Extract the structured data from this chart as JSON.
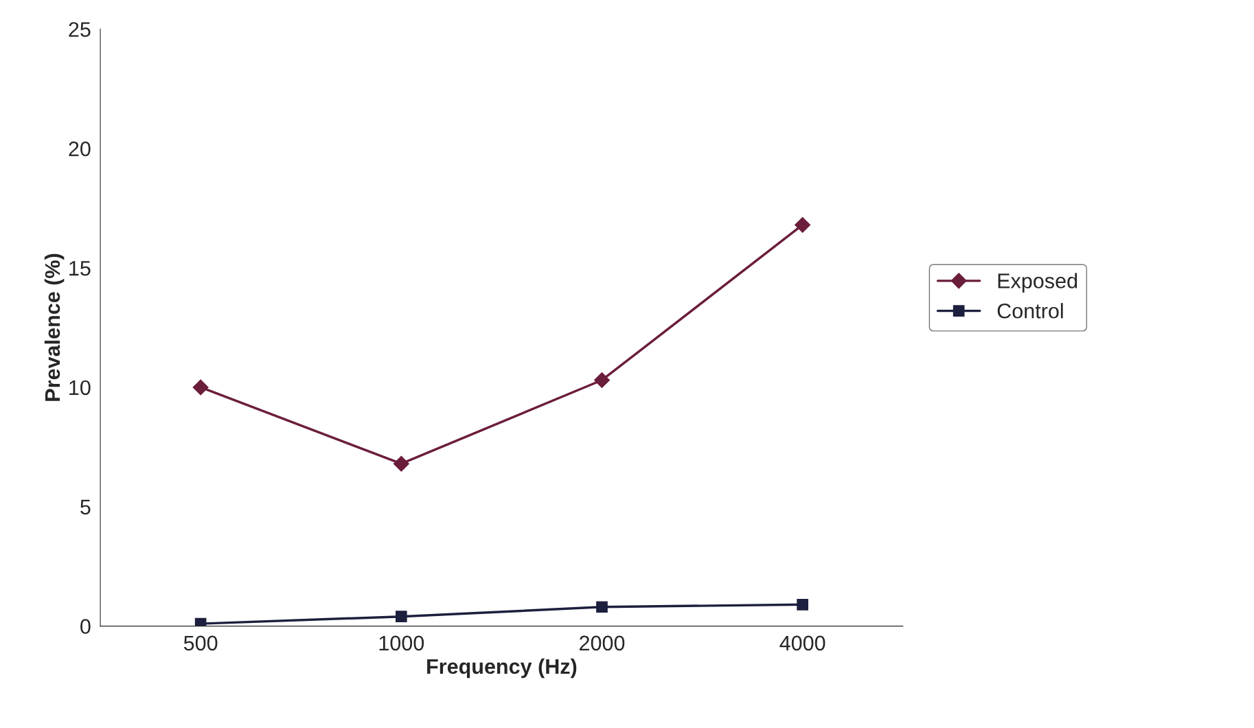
{
  "chart_data": {
    "type": "line",
    "xlabel": "Frequency (Hz)",
    "ylabel": "Prevalence (%)",
    "categories": [
      "500",
      "1000",
      "2000",
      "4000"
    ],
    "series": [
      {
        "name": "Exposed",
        "color": "#6b1d3c",
        "marker": "diamond",
        "values": [
          10,
          6.8,
          10.3,
          16.8
        ]
      },
      {
        "name": "Control",
        "color": "#1c1f3d",
        "marker": "square",
        "values": [
          0.1,
          0.4,
          0.8,
          0.9
        ]
      }
    ],
    "ylim": [
      0,
      25
    ],
    "yticks": [
      0,
      5,
      10,
      15,
      20,
      25
    ],
    "grid": false,
    "legend": "right",
    "line_style": "solid"
  }
}
